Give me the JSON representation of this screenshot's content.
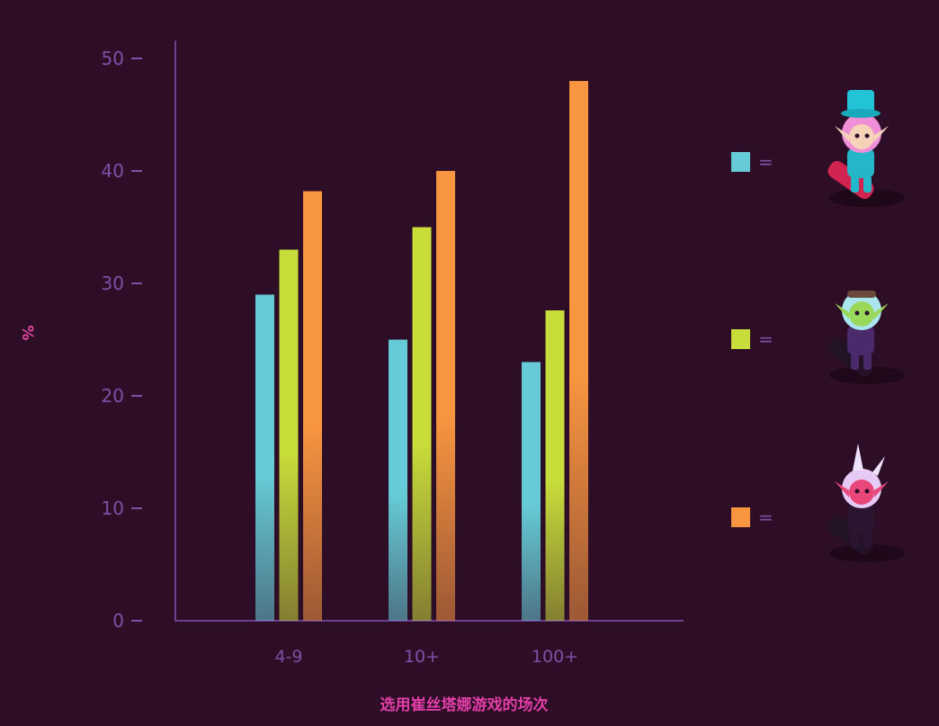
{
  "chart_data": {
    "type": "bar",
    "categories": [
      "4-9",
      "10+",
      "100+"
    ],
    "series": [
      {
        "values": [
          29,
          25,
          23
        ],
        "color": "#66cbd6",
        "icon": "tristana-candy-skin-icon"
      },
      {
        "values": [
          33,
          35,
          27.6
        ],
        "color": "#c8dc3a",
        "icon": "tristana-punk-skin-icon"
      },
      {
        "values": [
          38.2,
          40,
          48
        ],
        "color": "#f79540",
        "icon": "tristana-demon-skin-icon"
      }
    ],
    "xlabel": "选用崔丝塔娜游戏的场次",
    "ylabel": "%",
    "ylim": [
      0,
      50
    ],
    "yticks": [
      "0",
      "10",
      "20",
      "30",
      "40",
      "50"
    ],
    "legend_position": "right",
    "legend_separator": "=",
    "grid": false,
    "colors": {
      "background": "#2e0d27",
      "axis": "#6b3f8c",
      "tick_text": "#7d51a6",
      "axis_title": "#e33ea8"
    }
  }
}
